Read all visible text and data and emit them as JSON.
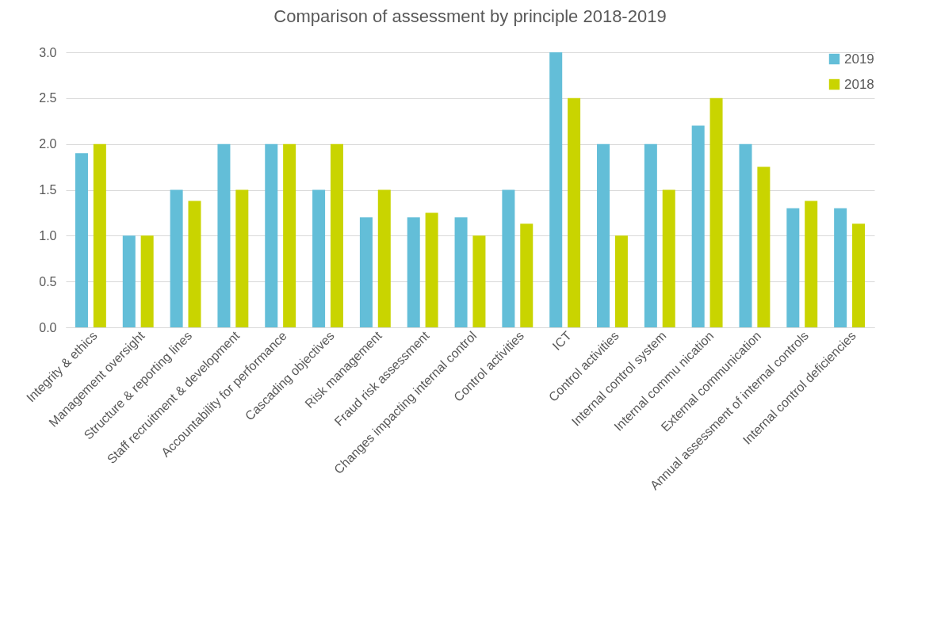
{
  "chart_data": {
    "type": "bar",
    "title": "Comparison of assessment by principle 2018-2019",
    "categories": [
      "Integrity & ethics",
      "Management oversight",
      "Structure & reporting lines",
      "Staff recruitment & development",
      "Accountability for performance",
      "Cascading objectives",
      "Risk management",
      "Fraud risk assessment",
      "Changes impacting internal control",
      "Control activities",
      "ICT",
      "Control activities",
      "Internal control system",
      "Internal commu nication",
      "External communication",
      "Annual assessment of internal controls",
      "Internal control deficiencies"
    ],
    "series": [
      {
        "name": "2019",
        "color": "#63bed8",
        "values": [
          1.9,
          1.0,
          1.5,
          2.0,
          2.0,
          1.5,
          1.2,
          1.2,
          1.2,
          1.5,
          3.0,
          2.0,
          2.0,
          2.2,
          2.0,
          1.3,
          1.3
        ]
      },
      {
        "name": "2018",
        "color": "#c9d400",
        "values": [
          2.0,
          1.0,
          1.38,
          1.5,
          2.0,
          2.0,
          1.5,
          1.25,
          1.0,
          1.13,
          2.5,
          1.0,
          1.5,
          2.5,
          1.75,
          1.38,
          1.13
        ]
      }
    ],
    "ylim": [
      0,
      3
    ],
    "yticks": [
      {
        "value": 0,
        "label": "0.0"
      },
      {
        "value": 0.5,
        "label": "0.5"
      },
      {
        "value": 1,
        "label": "1.0"
      },
      {
        "value": 1.5,
        "label": "1.5"
      },
      {
        "value": 2,
        "label": "2.0"
      },
      {
        "value": 2.5,
        "label": "2.5"
      },
      {
        "value": 3,
        "label": "3.0"
      }
    ],
    "grid": "y",
    "legend": "top right"
  }
}
